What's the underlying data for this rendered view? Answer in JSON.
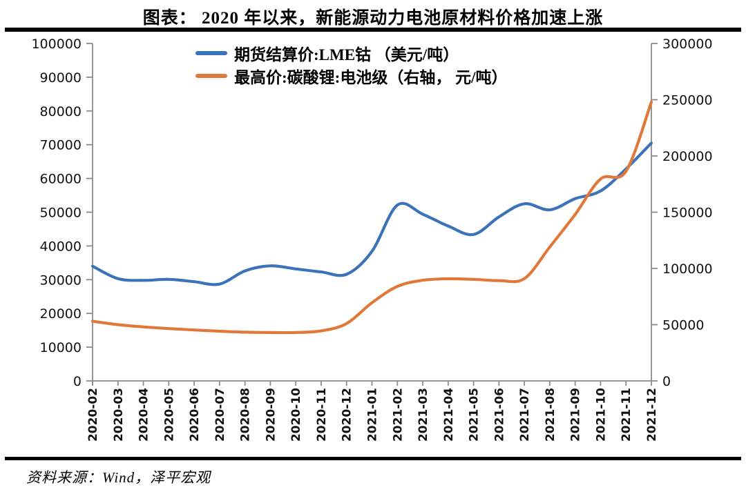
{
  "page": {
    "source": "资料来源：Wind，泽平宏观"
  },
  "colors": {
    "blue": "#3B73B9",
    "orange": "#E0783A",
    "axis_gray": "#8A8A8A",
    "rule_black": "#000000",
    "label_black": "#111111"
  },
  "chart_data": {
    "type": "line",
    "title": "图表：  2020 年以来，新能源动力电池原材料价格加速上涨",
    "grid": false,
    "legend_position": "top-center-inside",
    "categories": [
      "2020-02",
      "2020-03",
      "2020-04",
      "2020-05",
      "2020-06",
      "2020-07",
      "2020-08",
      "2020-09",
      "2020-10",
      "2020-11",
      "2020-12",
      "2021-01",
      "2021-02",
      "2021-03",
      "2021-04",
      "2021-05",
      "2021-06",
      "2021-07",
      "2021-08",
      "2021-09",
      "2021-10",
      "2021-11",
      "2021-12"
    ],
    "series": [
      {
        "name": "期货结算价:LME钴 （美元/吨）",
        "axis": "left",
        "color": "#3B73B9",
        "values": [
          34000,
          30300,
          29800,
          30100,
          29400,
          28700,
          32600,
          34100,
          33200,
          32300,
          31600,
          38400,
          52100,
          49400,
          45900,
          43400,
          48600,
          52500,
          50700,
          54000,
          56300,
          62800,
          70500
        ]
      },
      {
        "name": "最高价:碳酸锂:电池级（右轴， 元/吨）",
        "axis": "right",
        "color": "#E0783A",
        "values": [
          53000,
          50000,
          48000,
          46500,
          45300,
          44200,
          43300,
          43000,
          43000,
          44500,
          51000,
          69500,
          84000,
          89500,
          90800,
          90300,
          89200,
          91000,
          119000,
          148000,
          179500,
          186300,
          248000
        ]
      }
    ],
    "left_axis": {
      "label": "美元/吨",
      "min": 0,
      "max": 100000,
      "ticks": [
        "0",
        "10000",
        "20000",
        "30000",
        "40000",
        "50000",
        "60000",
        "70000",
        "80000",
        "90000",
        "100000"
      ]
    },
    "right_axis": {
      "label": "元/吨",
      "min": 0,
      "max": 300000,
      "ticks": [
        "0",
        "50000",
        "100000",
        "150000",
        "200000",
        "250000",
        "300000"
      ]
    }
  }
}
